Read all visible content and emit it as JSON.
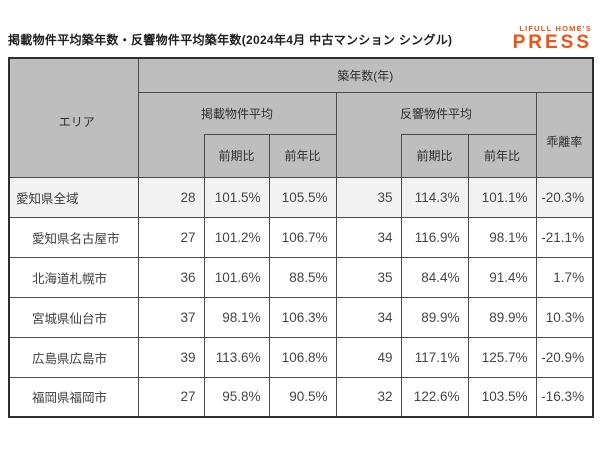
{
  "page": {
    "title": "掲載物件平均築年数・反響物件平均築年数(2024年4月 中古マンション シングル)"
  },
  "logo": {
    "line1": "LIFULL HOME'S",
    "line2": "PRESS",
    "color": "#EA5414"
  },
  "table": {
    "headers": {
      "area": "エリア",
      "age_years": "築年数(年)",
      "listed_avg": "掲載物件平均",
      "response_avg": "反響物件平均",
      "divergence": "乖離率",
      "prev_period": "前期比",
      "prev_year": "前年比"
    },
    "column_keys": [
      "area",
      "listed",
      "listed_pp",
      "listed_py",
      "resp",
      "resp_pp",
      "resp_py",
      "div"
    ],
    "rows": [
      {
        "area": "愛知県全域",
        "listed": "28",
        "listed_pp": "101.5%",
        "listed_py": "105.5%",
        "resp": "35",
        "resp_pp": "114.3%",
        "resp_py": "101.1%",
        "div": "-20.3%",
        "highlight": true,
        "indent": false
      },
      {
        "area": "愛知県名古屋市",
        "listed": "27",
        "listed_pp": "101.2%",
        "listed_py": "106.7%",
        "resp": "34",
        "resp_pp": "116.9%",
        "resp_py": "98.1%",
        "div": "-21.1%",
        "highlight": false,
        "indent": true
      },
      {
        "area": "北海道札幌市",
        "listed": "36",
        "listed_pp": "101.6%",
        "listed_py": "88.5%",
        "resp": "35",
        "resp_pp": "84.4%",
        "resp_py": "91.4%",
        "div": "1.7%",
        "highlight": false,
        "indent": true
      },
      {
        "area": "宮城県仙台市",
        "listed": "37",
        "listed_pp": "98.1%",
        "listed_py": "106.3%",
        "resp": "34",
        "resp_pp": "89.9%",
        "resp_py": "89.9%",
        "div": "10.3%",
        "highlight": false,
        "indent": true
      },
      {
        "area": "広島県広島市",
        "listed": "39",
        "listed_pp": "113.6%",
        "listed_py": "106.8%",
        "resp": "49",
        "resp_pp": "117.1%",
        "resp_py": "125.7%",
        "div": "-20.9%",
        "highlight": false,
        "indent": true
      },
      {
        "area": "福岡県福岡市",
        "listed": "27",
        "listed_pp": "95.8%",
        "listed_py": "90.5%",
        "resp": "32",
        "resp_pp": "122.6%",
        "resp_py": "103.5%",
        "div": "-16.3%",
        "highlight": false,
        "indent": true
      }
    ],
    "colors": {
      "header_bg": "#bebebe",
      "highlight_row_bg": "#f2f2f2",
      "border": "#4b4b4b"
    }
  },
  "chart_data": {
    "type": "table",
    "title": "掲載物件平均築年数・反響物件平均築年数(2024年4月 中古マンション シングル)",
    "columns": [
      "エリア",
      "掲載物件平均 築年数(年)",
      "掲載 前期比",
      "掲載 前年比",
      "反響物件平均 築年数(年)",
      "反響 前期比",
      "反響 前年比",
      "乖離率"
    ],
    "rows": [
      [
        "愛知県全域",
        28,
        "101.5%",
        "105.5%",
        35,
        "114.3%",
        "101.1%",
        "-20.3%"
      ],
      [
        "愛知県名古屋市",
        27,
        "101.2%",
        "106.7%",
        34,
        "116.9%",
        "98.1%",
        "-21.1%"
      ],
      [
        "北海道札幌市",
        36,
        "101.6%",
        "88.5%",
        35,
        "84.4%",
        "91.4%",
        "1.7%"
      ],
      [
        "宮城県仙台市",
        37,
        "98.1%",
        "106.3%",
        34,
        "89.9%",
        "89.9%",
        "10.3%"
      ],
      [
        "広島県広島市",
        39,
        "113.6%",
        "106.8%",
        49,
        "117.1%",
        "125.7%",
        "-20.9%"
      ],
      [
        "福岡県福岡市",
        27,
        "95.8%",
        "90.5%",
        32,
        "122.6%",
        "103.5%",
        "-16.3%"
      ]
    ]
  }
}
